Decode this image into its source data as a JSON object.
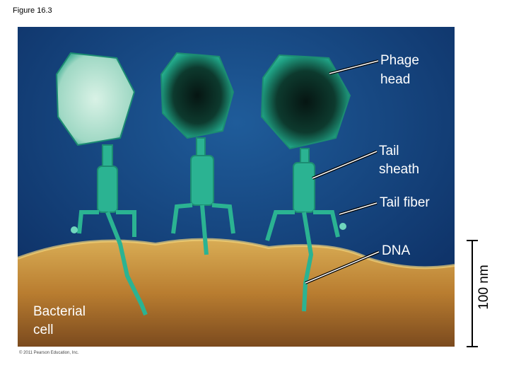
{
  "figure_label": "Figure 16.3",
  "labels": [
    {
      "lines": [
        "Phage",
        "head"
      ]
    },
    {
      "lines": [
        "Tail",
        "sheath"
      ]
    },
    {
      "lines": [
        "Tail fiber"
      ]
    },
    {
      "lines": [
        "DNA"
      ]
    }
  ],
  "cell_label": {
    "lines": [
      "Bacterial",
      "cell"
    ]
  },
  "scale_bar": "100 nm",
  "copyright": "© 2011 Pearson Education, Inc."
}
